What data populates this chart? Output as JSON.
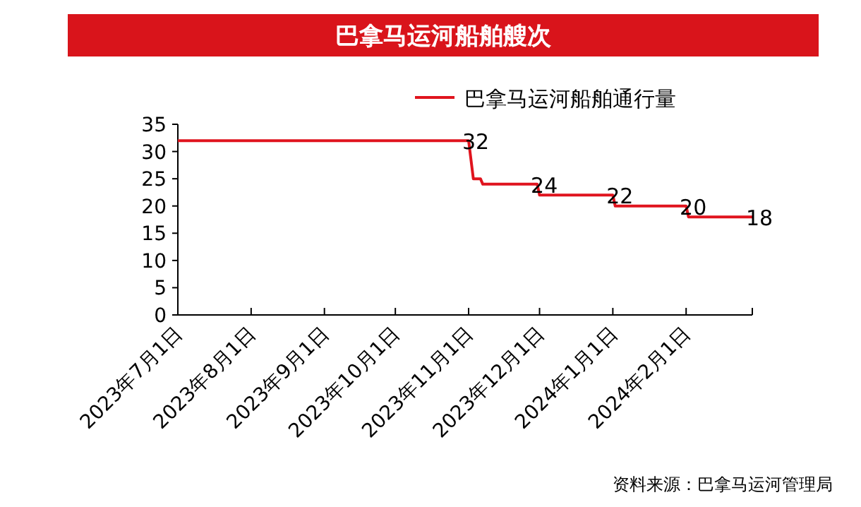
{
  "chart_data": {
    "type": "line",
    "title": "巴拿马运河船舶艘次",
    "x": [
      "2023-07-01",
      "2023-11-01",
      "2023-11-03",
      "2023-11-06",
      "2023-11-07",
      "2023-11-30",
      "2023-12-01",
      "2024-01-01",
      "2024-01-02",
      "2024-02-01",
      "2024-02-02",
      "2024-02-29"
    ],
    "series": [
      {
        "name": "巴拿马运河船舶通行量",
        "color": "#e0141e",
        "values": [
          32,
          32,
          25,
          25,
          24,
          24,
          22,
          22,
          20,
          20,
          18,
          18
        ],
        "value_labels": [
          null,
          "32",
          null,
          null,
          null,
          "24",
          null,
          "22",
          null,
          "20",
          null,
          "18"
        ]
      }
    ],
    "xlim": [
      "2023-07-01",
      "2024-02-29"
    ],
    "xticks": [
      {
        "value": "2023-07-01",
        "label": "2023年7月1日"
      },
      {
        "value": "2023-08-01",
        "label": "2023年8月1日"
      },
      {
        "value": "2023-09-01",
        "label": "2023年9月1日"
      },
      {
        "value": "2023-10-01",
        "label": "2023年10月1日"
      },
      {
        "value": "2023-11-01",
        "label": "2023年11月1日"
      },
      {
        "value": "2023-12-01",
        "label": "2023年12月1日"
      },
      {
        "value": "2024-01-01",
        "label": "2024年1月1日"
      },
      {
        "value": "2024-02-01",
        "label": "2024年2月1日"
      }
    ],
    "ylim": [
      0,
      35
    ],
    "yticks": [
      0,
      5,
      10,
      15,
      20,
      25,
      30,
      35
    ],
    "legend": "top right",
    "marker": "none",
    "line_style": "solid",
    "grid": false,
    "annotations": [
      "资料来源：巴拿马运河管理局"
    ]
  }
}
